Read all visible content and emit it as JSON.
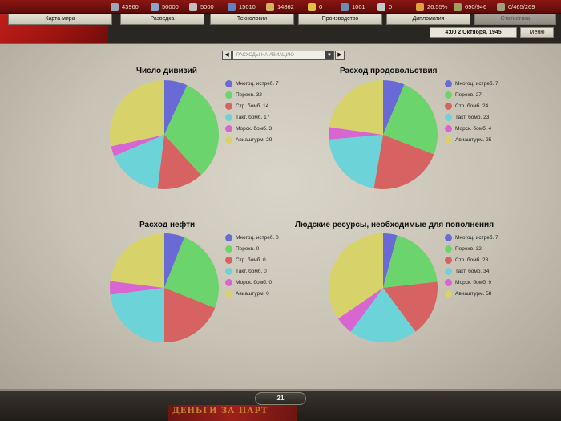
{
  "topbar": {
    "resources": [
      {
        "icon": "gear-icon",
        "value": "43960",
        "color": "#9aa7b8"
      },
      {
        "icon": "wave-icon",
        "value": "50000",
        "color": "#8aa4c8"
      },
      {
        "icon": "metal-icon",
        "value": "5000",
        "color": "#c0c0c0"
      },
      {
        "icon": "oil-icon",
        "value": "15010",
        "color": "#6080c0"
      },
      {
        "icon": "supplies-icon",
        "value": "14862",
        "color": "#d4b060"
      },
      {
        "icon": "money-icon",
        "value": "0",
        "color": "#e0c040"
      },
      {
        "icon": "manpower-icon",
        "value": "1001",
        "color": "#6c8cb8"
      },
      {
        "icon": "crossed-swords-icon",
        "value": "0",
        "color": "#c8c8c8"
      },
      {
        "icon": "flame-icon",
        "value": "26.55%",
        "color": "#e0a040"
      },
      {
        "icon": "tank-icon",
        "value": "690/946",
        "color": "#a0a060"
      },
      {
        "icon": "rifle-icon",
        "value": "0/465/269",
        "color": "#a0a080"
      }
    ]
  },
  "tabs": [
    {
      "label": "Карта мира"
    },
    {
      "label": "Разведка"
    },
    {
      "label": "Технологии"
    },
    {
      "label": "Производство"
    },
    {
      "label": "Дипломатия"
    },
    {
      "label": "Статистика"
    }
  ],
  "date": "4:00 2 Октября, 1945",
  "menu_label": "Меню",
  "selector": {
    "value": "РАСХОДЫ НА АВИАЦИЮ",
    "prev_label": "◀",
    "next_label": "▶",
    "drop_label": "▼"
  },
  "turn_number": "21",
  "banner_text": "ДЕНЬГИ ЗА ПАРТ",
  "chart_data": [
    {
      "type": "pie",
      "title": "Число дивизий",
      "series": [
        {
          "name": "Многоц. истреб.",
          "value": 7,
          "color": "#6a6ad6"
        },
        {
          "name": "Перехв.",
          "value": 32,
          "color": "#6cd46c"
        },
        {
          "name": "Стр. бомб.",
          "value": 14,
          "color": "#d66262"
        },
        {
          "name": "Такт. бомб.",
          "value": 17,
          "color": "#6cd4d8"
        },
        {
          "name": "Морск. бомб.",
          "value": 3,
          "color": "#d866d2"
        },
        {
          "name": "Авиаштурм.",
          "value": 29,
          "color": "#d8d26a"
        }
      ],
      "legend_labels": [
        "Многоц. истреб. 7",
        "Перехв. 32",
        "Стр. бомб. 14",
        "Такт. бомб. 17",
        "Морск. бомб. 3",
        "Авиаштурм. 29"
      ]
    },
    {
      "type": "pie",
      "title": "Расход продовольствия",
      "series": [
        {
          "name": "Многоц. истреб.",
          "value": 7,
          "color": "#6a6ad6"
        },
        {
          "name": "Перехв.",
          "value": 27,
          "color": "#6cd46c"
        },
        {
          "name": "Стр. бомб.",
          "value": 24,
          "color": "#d66262"
        },
        {
          "name": "Такт. бомб.",
          "value": 23,
          "color": "#6cd4d8"
        },
        {
          "name": "Морск. бомб.",
          "value": 4,
          "color": "#d866d2"
        },
        {
          "name": "Авиаштурм.",
          "value": 25,
          "color": "#d8d26a"
        }
      ],
      "legend_labels": [
        "Многоц. истреб. 7",
        "Перехв. 27",
        "Стр. бомб. 24",
        "Такт. бомб. 23",
        "Морск. бомб. 4",
        "Авиаштурм. 25"
      ]
    },
    {
      "type": "pie",
      "title": "Расход нефти",
      "series": [
        {
          "name": "Многоц. истреб.",
          "value": 0,
          "color": "#6a6ad6"
        },
        {
          "name": "Перехв.",
          "value": 0,
          "color": "#6cd46c"
        },
        {
          "name": "Стр. бомб.",
          "value": 0,
          "color": "#d66262"
        },
        {
          "name": "Такт. бомб.",
          "value": 0,
          "color": "#6cd4d8"
        },
        {
          "name": "Морск. бомб.",
          "value": 0,
          "color": "#d866d2"
        },
        {
          "name": "Авиаштурм.",
          "value": 0,
          "color": "#d8d26a"
        }
      ],
      "display_shares": [
        6,
        25,
        19,
        23,
        4,
        23
      ],
      "legend_labels": [
        "Многоц. истреб. 0",
        "Перехв. 0",
        "Стр. бомб. 0",
        "Такт. бомб. 0",
        "Морск. бомб. 0",
        "Авиаштурм. 0"
      ]
    },
    {
      "type": "pie",
      "title": "Людские ресурсы, необходимые для пополнения",
      "series": [
        {
          "name": "Многоц. истреб.",
          "value": 7,
          "color": "#6a6ad6"
        },
        {
          "name": "Перехв.",
          "value": 32,
          "color": "#6cd46c"
        },
        {
          "name": "Стр. бомб.",
          "value": 28,
          "color": "#d66262"
        },
        {
          "name": "Такт. бомб.",
          "value": 34,
          "color": "#6cd4d8"
        },
        {
          "name": "Морск. бомб.",
          "value": 9,
          "color": "#d866d2"
        },
        {
          "name": "Авиаштурм.",
          "value": 58,
          "color": "#d8d26a"
        }
      ],
      "legend_labels": [
        "Многоц. истреб. 7",
        "Перехв. 32",
        "Стр. бомб. 28",
        "Такт. бомб. 34",
        "Морск. бомб. 9",
        "Авиаштурм. 58"
      ]
    }
  ]
}
